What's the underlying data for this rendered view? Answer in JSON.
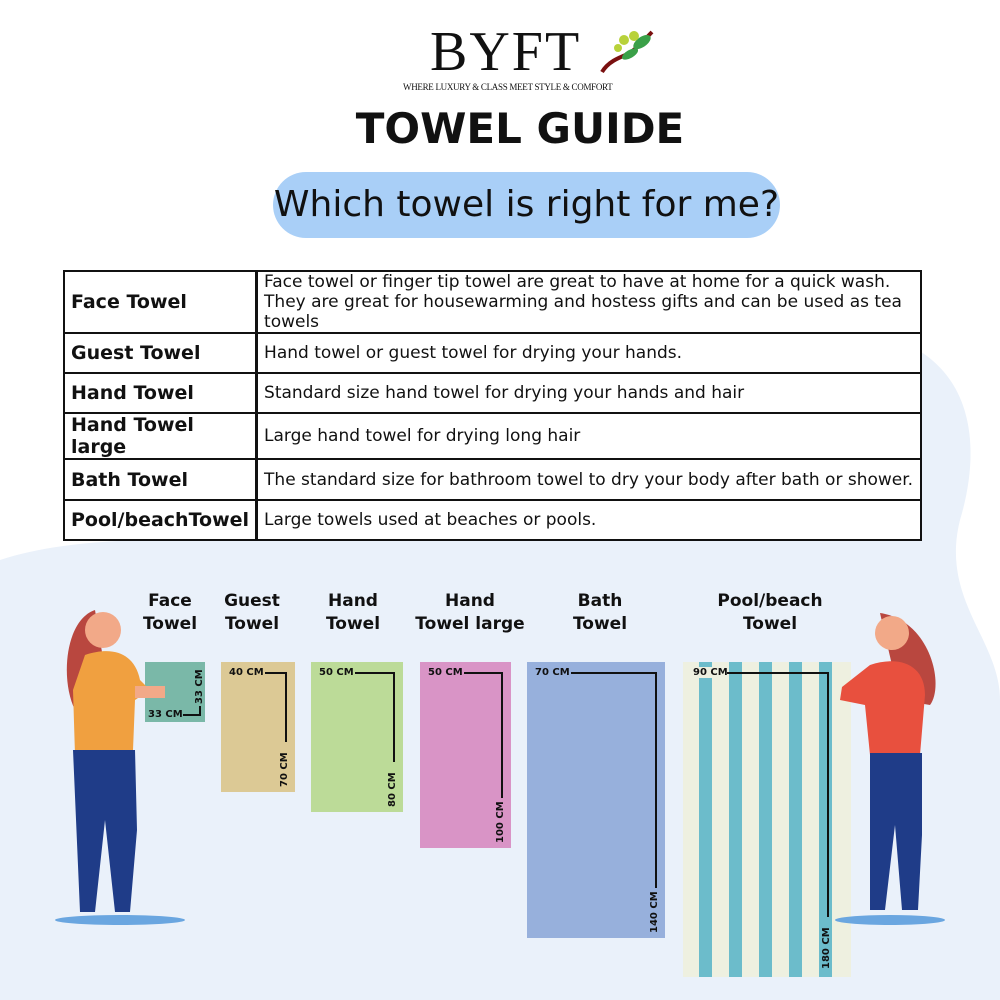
{
  "brand": {
    "name": "BYFT",
    "tagline": "WHERE LUXURY & CLASS MEET STYLE & COMFORT"
  },
  "title": "TOWEL GUIDE",
  "subtitle": "Which towel is right for me?",
  "table": [
    {
      "name": "Face Towel",
      "desc": "Face towel or finger tip towel are great to have at home for a quick wash.",
      "desc2": "They are great for housewarming and hostess gifts and can be used as tea towels"
    },
    {
      "name": "Guest Towel",
      "desc": "Hand towel or guest towel for drying your hands."
    },
    {
      "name": "Hand Towel",
      "desc": "Standard size hand towel for drying your hands and hair"
    },
    {
      "name": "Hand Towel large",
      "desc": "Large hand towel for drying long hair"
    },
    {
      "name": "Bath Towel",
      "desc": "The standard size for bathroom towel to dry your body after bath or shower."
    },
    {
      "name": "Pool/beachTowel",
      "desc": "Large towels used at beaches or pools."
    }
  ],
  "towels": [
    {
      "line1": "Face",
      "line2": "Towel",
      "width": "33 CM",
      "height": "33 CM",
      "color": "#7ab8a8"
    },
    {
      "line1": "Guest",
      "line2": "Towel",
      "width": "40 CM",
      "height": "70 CM",
      "color": "#dcc995"
    },
    {
      "line1": "Hand",
      "line2": "Towel",
      "width": "50 CM",
      "height": "80 CM",
      "color": "#bcdb98"
    },
    {
      "line1": "Hand",
      "line2": "Towel large",
      "width": "50 CM",
      "height": "100 CM",
      "color": "#d994c6"
    },
    {
      "line1": "Bath",
      "line2": "Towel",
      "width": "70 CM",
      "height": "140 CM",
      "color": "#97b0dc"
    },
    {
      "line1": "Pool/beach",
      "line2": "Towel",
      "width": "90 CM",
      "height": "180 CM",
      "color": "#6cbccb"
    }
  ],
  "colors": {
    "pill": "#a9cff7",
    "background_blob": "#eaf1fa"
  }
}
